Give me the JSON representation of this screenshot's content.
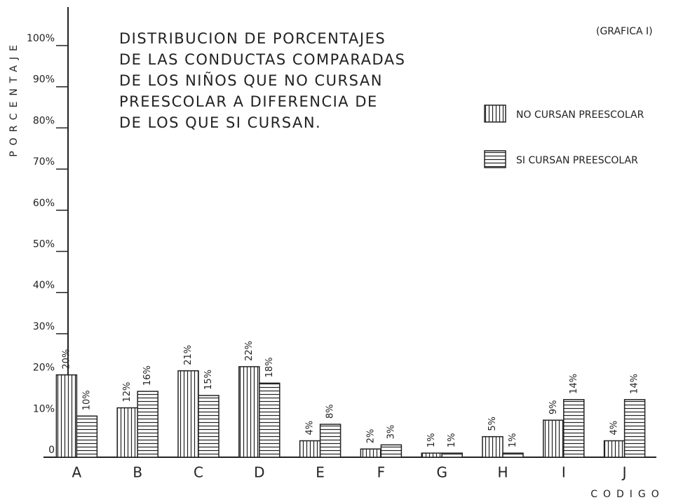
{
  "chart_data": {
    "type": "bar",
    "title": [
      "DISTRIBUCION DE PORCENTAJES",
      "DE LAS CONDUCTAS COMPARADAS",
      "DE LOS NIÑOS QUE NO CURSAN",
      "PREESCOLAR A DIFERENCIA DE",
      "DE LOS QUE SI CURSAN."
    ],
    "annotation": "(GRAFICA I)",
    "y_label": "PORCENTAJE",
    "x_label": "CODIGO",
    "categories": [
      "A",
      "B",
      "C",
      "D",
      "E",
      "F",
      "G",
      "H",
      "I",
      "J"
    ],
    "series": [
      {
        "name": "NO CURSAN PREESCOLAR",
        "color": "#222222",
        "hatch": "vertical",
        "values": [
          20,
          12,
          21,
          22,
          4,
          2,
          1,
          5,
          9,
          4
        ],
        "value_labels": [
          "20%",
          "12%",
          "21%",
          "22%",
          "4%",
          "2%",
          "1%",
          "5%",
          "9%",
          "4%"
        ]
      },
      {
        "name": "SI CURSAN PREESCOLAR",
        "color": "#222222",
        "hatch": "horizontal",
        "values": [
          10,
          16,
          15,
          18,
          8,
          3,
          1,
          1,
          14,
          14
        ],
        "value_labels": [
          "10%",
          "16%",
          "15%",
          "18%",
          "8%",
          "3%",
          "1%",
          "1%",
          "14%",
          "14%"
        ]
      }
    ],
    "ylim": [
      0,
      100
    ],
    "yticks": [
      0,
      {
        "value": 10,
        "label": "10%"
      },
      {
        "value": 20,
        "label": "20%"
      },
      {
        "value": 30,
        "label": "30%"
      },
      {
        "value": 40,
        "label": "40%"
      },
      {
        "value": 50,
        "label": "50%"
      },
      {
        "value": 60,
        "label": "60%"
      },
      {
        "value": 70,
        "label": "70%"
      },
      {
        "value": 80,
        "label": "80%"
      },
      {
        "value": 90,
        "label": "90%"
      },
      {
        "value": 100,
        "label": "100%"
      }
    ],
    "grid": false
  }
}
